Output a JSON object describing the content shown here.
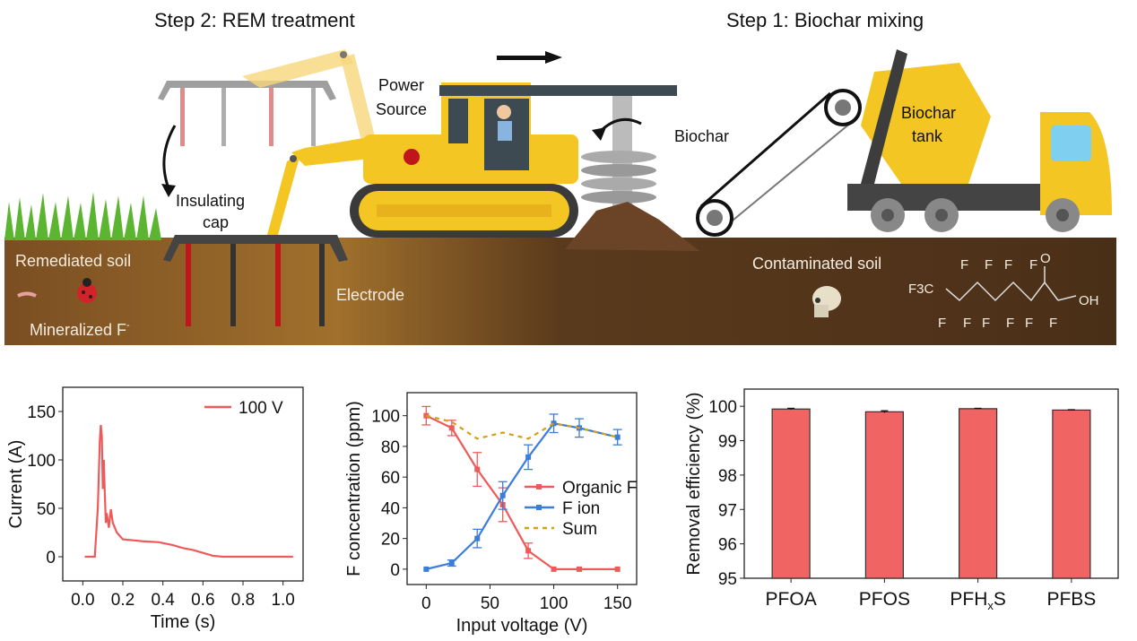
{
  "illustration": {
    "step2_title": "Step 2: REM treatment",
    "step1_title": "Step 1: Biochar mixing",
    "power_source_line1": "Power",
    "power_source_line2": "Source",
    "insulating_cap_line1": "Insulating",
    "insulating_cap_line2": "cap",
    "remediated_soil": "Remediated soil",
    "mineralized_f": "Mineralized F",
    "mineralized_f_sup": "-",
    "electrode": "Electrode",
    "biochar": "Biochar",
    "biochar_tank_line1": "Biochar",
    "biochar_tank_line2": "tank",
    "contaminated_soil": "Contaminated soil",
    "molecule_f3c": "F3C",
    "molecule_oh": "OH",
    "molecule_o": "O",
    "molecule_f": "F",
    "colors": {
      "machine_yellow": "#f3c623",
      "soil": "#4a2f18",
      "electrode_red": "#c0161b",
      "bar_red": "#f06464"
    }
  },
  "chart_data": [
    {
      "type": "line",
      "xlabel": "Time (s)",
      "ylabel": "Current (A)",
      "xlim": [
        -0.1,
        1.1
      ],
      "ylim": [
        -25,
        175
      ],
      "xticks": [
        "0.0",
        "0.2",
        "0.4",
        "0.6",
        "0.8",
        "1.0"
      ],
      "yticks": [
        "0",
        "50",
        "100",
        "150"
      ],
      "legend_position": "top-right",
      "series": [
        {
          "name": "100 V",
          "color": "#ee5a5a",
          "points": [
            [
              0.01,
              0
            ],
            [
              0.06,
              0
            ],
            [
              0.075,
              50
            ],
            [
              0.085,
              120
            ],
            [
              0.09,
              136
            ],
            [
              0.095,
              125
            ],
            [
              0.1,
              70
            ],
            [
              0.105,
              100
            ],
            [
              0.11,
              65
            ],
            [
              0.115,
              35
            ],
            [
              0.12,
              45
            ],
            [
              0.13,
              30
            ],
            [
              0.14,
              49
            ],
            [
              0.15,
              35
            ],
            [
              0.17,
              25
            ],
            [
              0.2,
              18
            ],
            [
              0.3,
              16
            ],
            [
              0.38,
              15
            ],
            [
              0.45,
              12
            ],
            [
              0.5,
              9
            ],
            [
              0.55,
              7
            ],
            [
              0.6,
              4
            ],
            [
              0.65,
              1
            ],
            [
              0.7,
              0
            ],
            [
              0.8,
              0
            ],
            [
              0.9,
              0
            ],
            [
              1.05,
              0
            ]
          ]
        }
      ]
    },
    {
      "type": "line",
      "xlabel": "Input voltage (V)",
      "ylabel": "F concentration (ppm)",
      "xlim": [
        -15,
        165
      ],
      "ylim": [
        -10,
        115
      ],
      "xticks": [
        "0",
        "50",
        "100",
        "150"
      ],
      "yticks": [
        "0",
        "20",
        "40",
        "60",
        "80",
        "100"
      ],
      "legend_position": "center-right",
      "x": [
        0,
        20,
        40,
        60,
        80,
        100,
        120,
        150
      ],
      "series": [
        {
          "name": "Organic F",
          "color": "#ee5a5a",
          "values": [
            100,
            92,
            65,
            42,
            12,
            0,
            0,
            0
          ],
          "errors": [
            6,
            5,
            11,
            11,
            5,
            0,
            0,
            0
          ]
        },
        {
          "name": "F ion",
          "color": "#3b7dd8",
          "values": [
            0,
            4,
            20,
            48,
            73,
            95,
            92,
            86
          ],
          "errors": [
            0,
            2,
            6,
            9,
            8,
            6,
            6,
            5
          ]
        },
        {
          "name": "Sum",
          "color": "#d4a017",
          "dashed": true,
          "values": [
            100,
            96,
            85,
            89,
            85,
            95,
            92,
            86
          ]
        }
      ]
    },
    {
      "type": "bar",
      "ylabel": "Removal efficiency (%)",
      "xlabel": "",
      "ylim": [
        95,
        100.5
      ],
      "yticks": [
        "95",
        "96",
        "97",
        "98",
        "99",
        "100"
      ],
      "categories": [
        "PFOA",
        "PFOS",
        "PFHxS",
        "PFBS"
      ],
      "values": [
        99.92,
        99.84,
        99.93,
        99.89
      ],
      "errors": [
        0.02,
        0.03,
        0.01,
        0.01
      ],
      "color": "#f06464"
    }
  ]
}
